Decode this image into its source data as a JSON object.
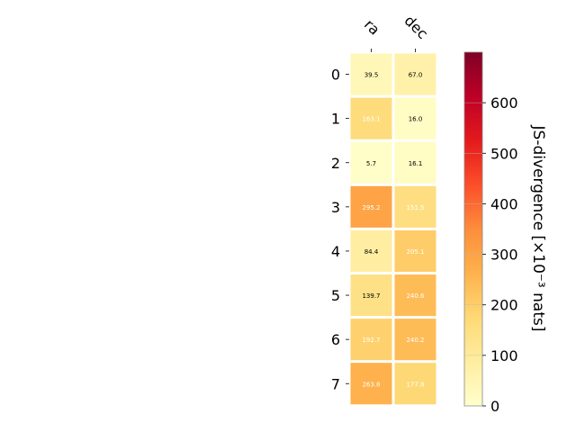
{
  "chart_data": {
    "type": "heatmap",
    "columns": [
      "ra",
      "dec"
    ],
    "rows": [
      "0",
      "1",
      "2",
      "3",
      "4",
      "5",
      "6",
      "7"
    ],
    "values": [
      [
        39.5,
        67.0
      ],
      [
        163.1,
        16.0
      ],
      [
        5.7,
        16.1
      ],
      [
        295.2,
        151.5
      ],
      [
        84.4,
        205.1
      ],
      [
        139.7,
        240.6
      ],
      [
        192.7,
        240.2
      ],
      [
        263.8,
        177.8
      ]
    ],
    "value_labels": [
      [
        "39.5",
        "67.0"
      ],
      [
        "163.1",
        "16.0"
      ],
      [
        "5.7",
        "16.1"
      ],
      [
        "295.2",
        "151.5"
      ],
      [
        "84.4",
        "205.1"
      ],
      [
        "139.7",
        "240.6"
      ],
      [
        "192.7",
        "240.2"
      ],
      [
        "263.8",
        "177.8"
      ]
    ],
    "colormap": "YlOrRd",
    "colorbar": {
      "label": "JS-divergence [×10⁻³ nats]",
      "range": [
        0,
        700
      ],
      "ticks": [
        "0",
        "100",
        "200",
        "300",
        "400",
        "500",
        "600"
      ]
    }
  }
}
